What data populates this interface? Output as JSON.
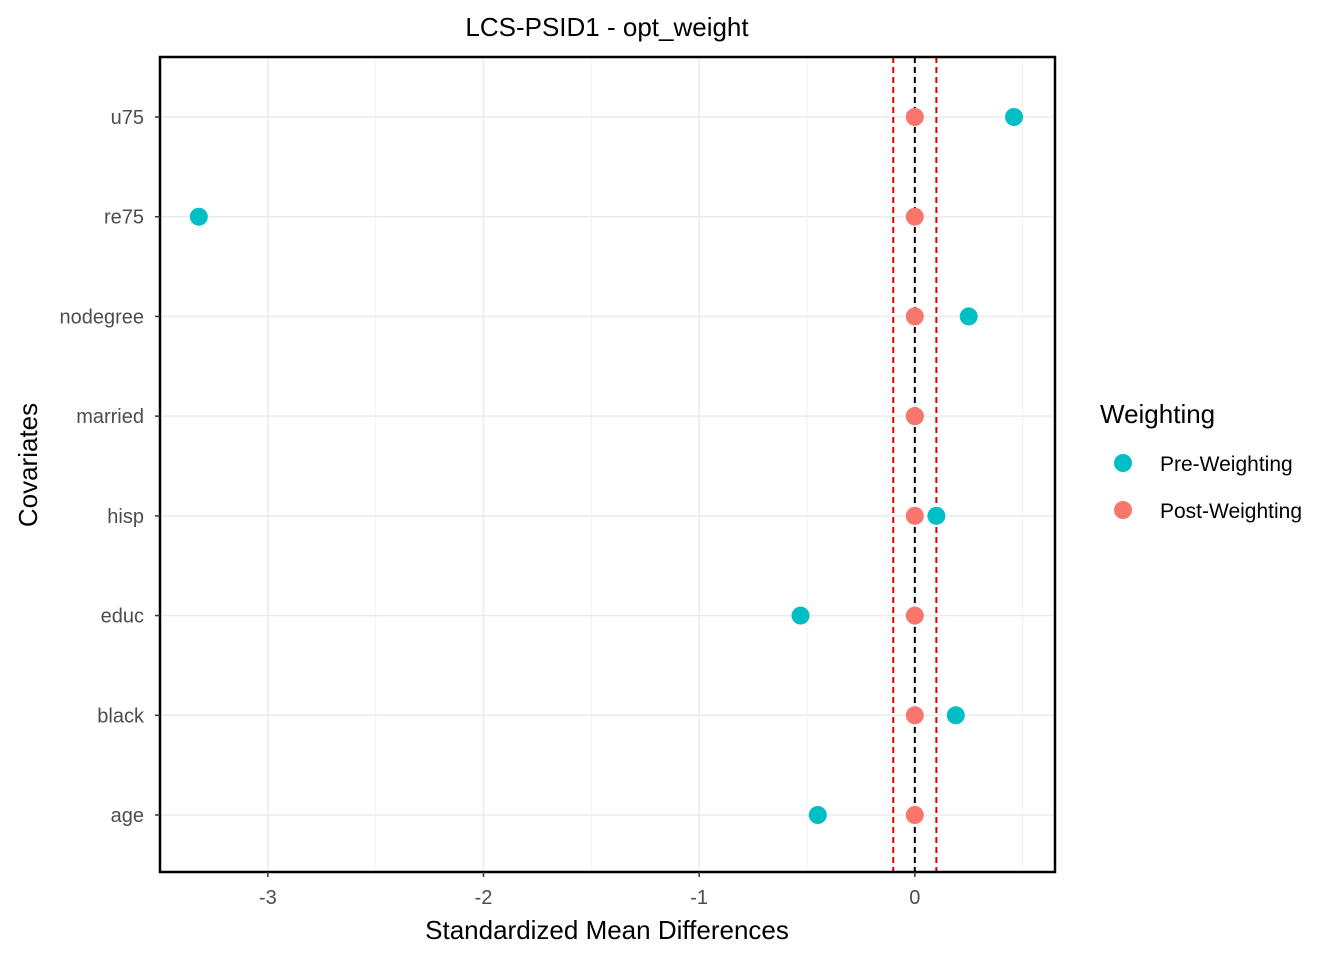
{
  "chart_data": {
    "type": "scatter",
    "title": "LCS-PSID1 - opt_weight",
    "xlabel": "Standardized Mean Differences",
    "ylabel": "Covariates",
    "xlim": [
      -3.5,
      0.65
    ],
    "x_ticks": [
      -3,
      -2,
      -1,
      0
    ],
    "x_tick_labels": [
      "-3",
      "-2",
      "-1",
      "0"
    ],
    "categories": [
      "age",
      "black",
      "educ",
      "hisp",
      "married",
      "nodegree",
      "re75",
      "u75"
    ],
    "series": [
      {
        "name": "Pre-Weighting",
        "color": "#00BFC4",
        "values": [
          -0.45,
          0.19,
          -0.53,
          0.1,
          0.0,
          0.25,
          -3.32,
          0.46
        ]
      },
      {
        "name": "Post-Weighting",
        "color": "#F8766D",
        "values": [
          0.0,
          0.0,
          0.0,
          0.0,
          0.0,
          0.0,
          0.0,
          0.0
        ]
      }
    ],
    "reference_lines": [
      {
        "x": 0,
        "color": "#000000",
        "style": "dashed"
      },
      {
        "x": -0.1,
        "color": "#E00000",
        "style": "dashed"
      },
      {
        "x": 0.1,
        "color": "#E00000",
        "style": "dashed"
      }
    ],
    "legend": {
      "title": "Weighting",
      "position": "right"
    },
    "grid": true
  }
}
